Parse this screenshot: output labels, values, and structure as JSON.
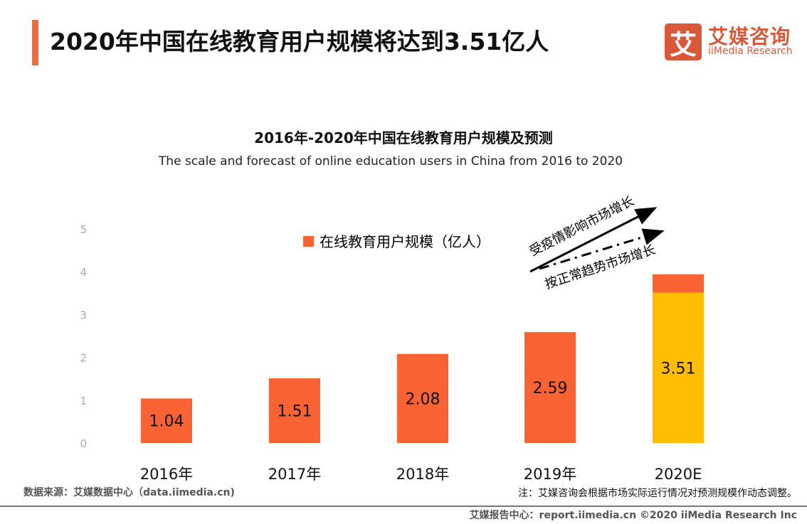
{
  "header": {
    "title": "2020年中国在线教育用户规模将达到3.51亿人"
  },
  "logo": {
    "mark": "艾",
    "name_cn": "艾媒咨询",
    "name_en": "iiMedia Research",
    "color": "#d9583a"
  },
  "chart_data": {
    "type": "bar",
    "title": "2016年-2020年中国在线教育用户规模及预测",
    "subtitle": "The scale and forecast of online education users in China from 2016 to 2020",
    "categories": [
      "2016年",
      "2017年",
      "2018年",
      "2019年",
      "2020E"
    ],
    "series": [
      {
        "name": "在线教育用户规模（亿人）",
        "values": [
          1.04,
          1.51,
          2.08,
          2.59,
          3.51
        ],
        "labels": [
          "1.04",
          "1.51",
          "2.08",
          "2.59",
          "3.51"
        ],
        "color": "#f96233",
        "last_color": "#ffbd00"
      }
    ],
    "epidemic_extra_2020": 0.43,
    "yticks": [
      0,
      1,
      2,
      3,
      4,
      5
    ],
    "ylim": [
      0,
      5
    ],
    "grid": false,
    "legend": "top-center",
    "annotations": {
      "upper_arrow": "受疫情影响市场增长",
      "lower_arrow": "按正常趋势市场增长"
    }
  },
  "footer": {
    "source": "数据来源：艾媒数据中心（data.iimedia.cn)",
    "note": "注：艾媒咨询会根据市场实际运行情况对预测规模作动态调整。",
    "report": "艾媒报告中心：report.iimedia.cn  ©2020  iiMedia Research  Inc"
  }
}
